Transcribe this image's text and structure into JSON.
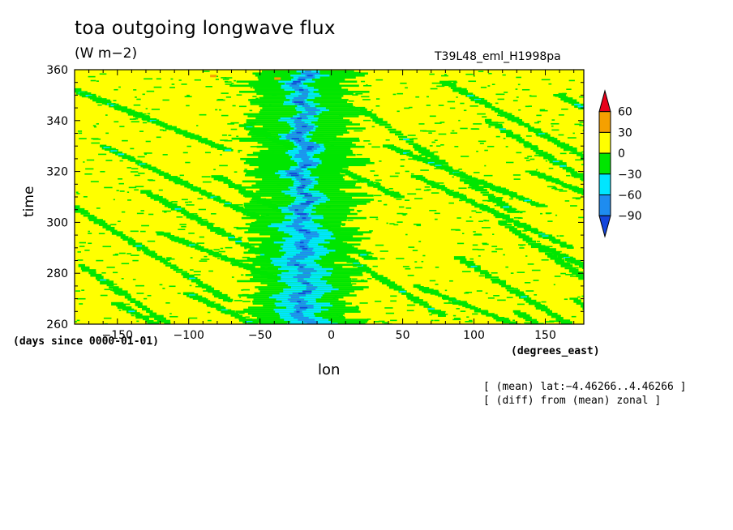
{
  "header": {
    "title": "toa outgoing longwave flux",
    "units": "(W m−2)",
    "run_name": "T39L48_eml_H1998pa"
  },
  "notes": {
    "line1": "[ (mean) lat:−4.46266..4.46266 ]",
    "line2": "[ (diff) from (mean) zonal ]"
  },
  "chart_data": {
    "type": "heatmap",
    "title": "toa outgoing longwave flux",
    "subtitle": "(W m−2)",
    "xlabel": "lon",
    "x_units": "(degrees_east)",
    "ylabel": "time",
    "y_units": "(days since 0000-01-01)",
    "xlim": [
      -180,
      177
    ],
    "ylim": [
      260,
      360
    ],
    "x_ticks": [
      -150,
      -100,
      -50,
      0,
      50,
      100,
      150
    ],
    "x_tick_labels": [
      "−150",
      "−100",
      "−50",
      "0",
      "50",
      "100",
      "150"
    ],
    "y_ticks": [
      260,
      280,
      300,
      320,
      340,
      360
    ],
    "y_tick_labels": [
      "260",
      "280",
      "300",
      "320",
      "340",
      "360"
    ],
    "colorbar": {
      "levels": [
        60,
        30,
        0,
        -30,
        -60,
        -90
      ],
      "level_labels": [
        "60",
        "30",
        "0",
        "−30",
        "−60",
        "−90"
      ],
      "colors": [
        "#e8001a",
        "#f5a000",
        "#ffff00",
        "#00e600",
        "#00e6ff",
        "#1e8cf0",
        "#1446dc"
      ],
      "color_ranges": [
        ">60",
        "30..60",
        "0..30",
        "-30..0",
        "-60..-30",
        "-90..-60",
        "<-90"
      ]
    },
    "features": {
      "background_anomaly": "0..30",
      "convective_band_center_lon": -20,
      "convective_band_min_value": "<-90",
      "westward_streaks": "-30..0"
    }
  }
}
